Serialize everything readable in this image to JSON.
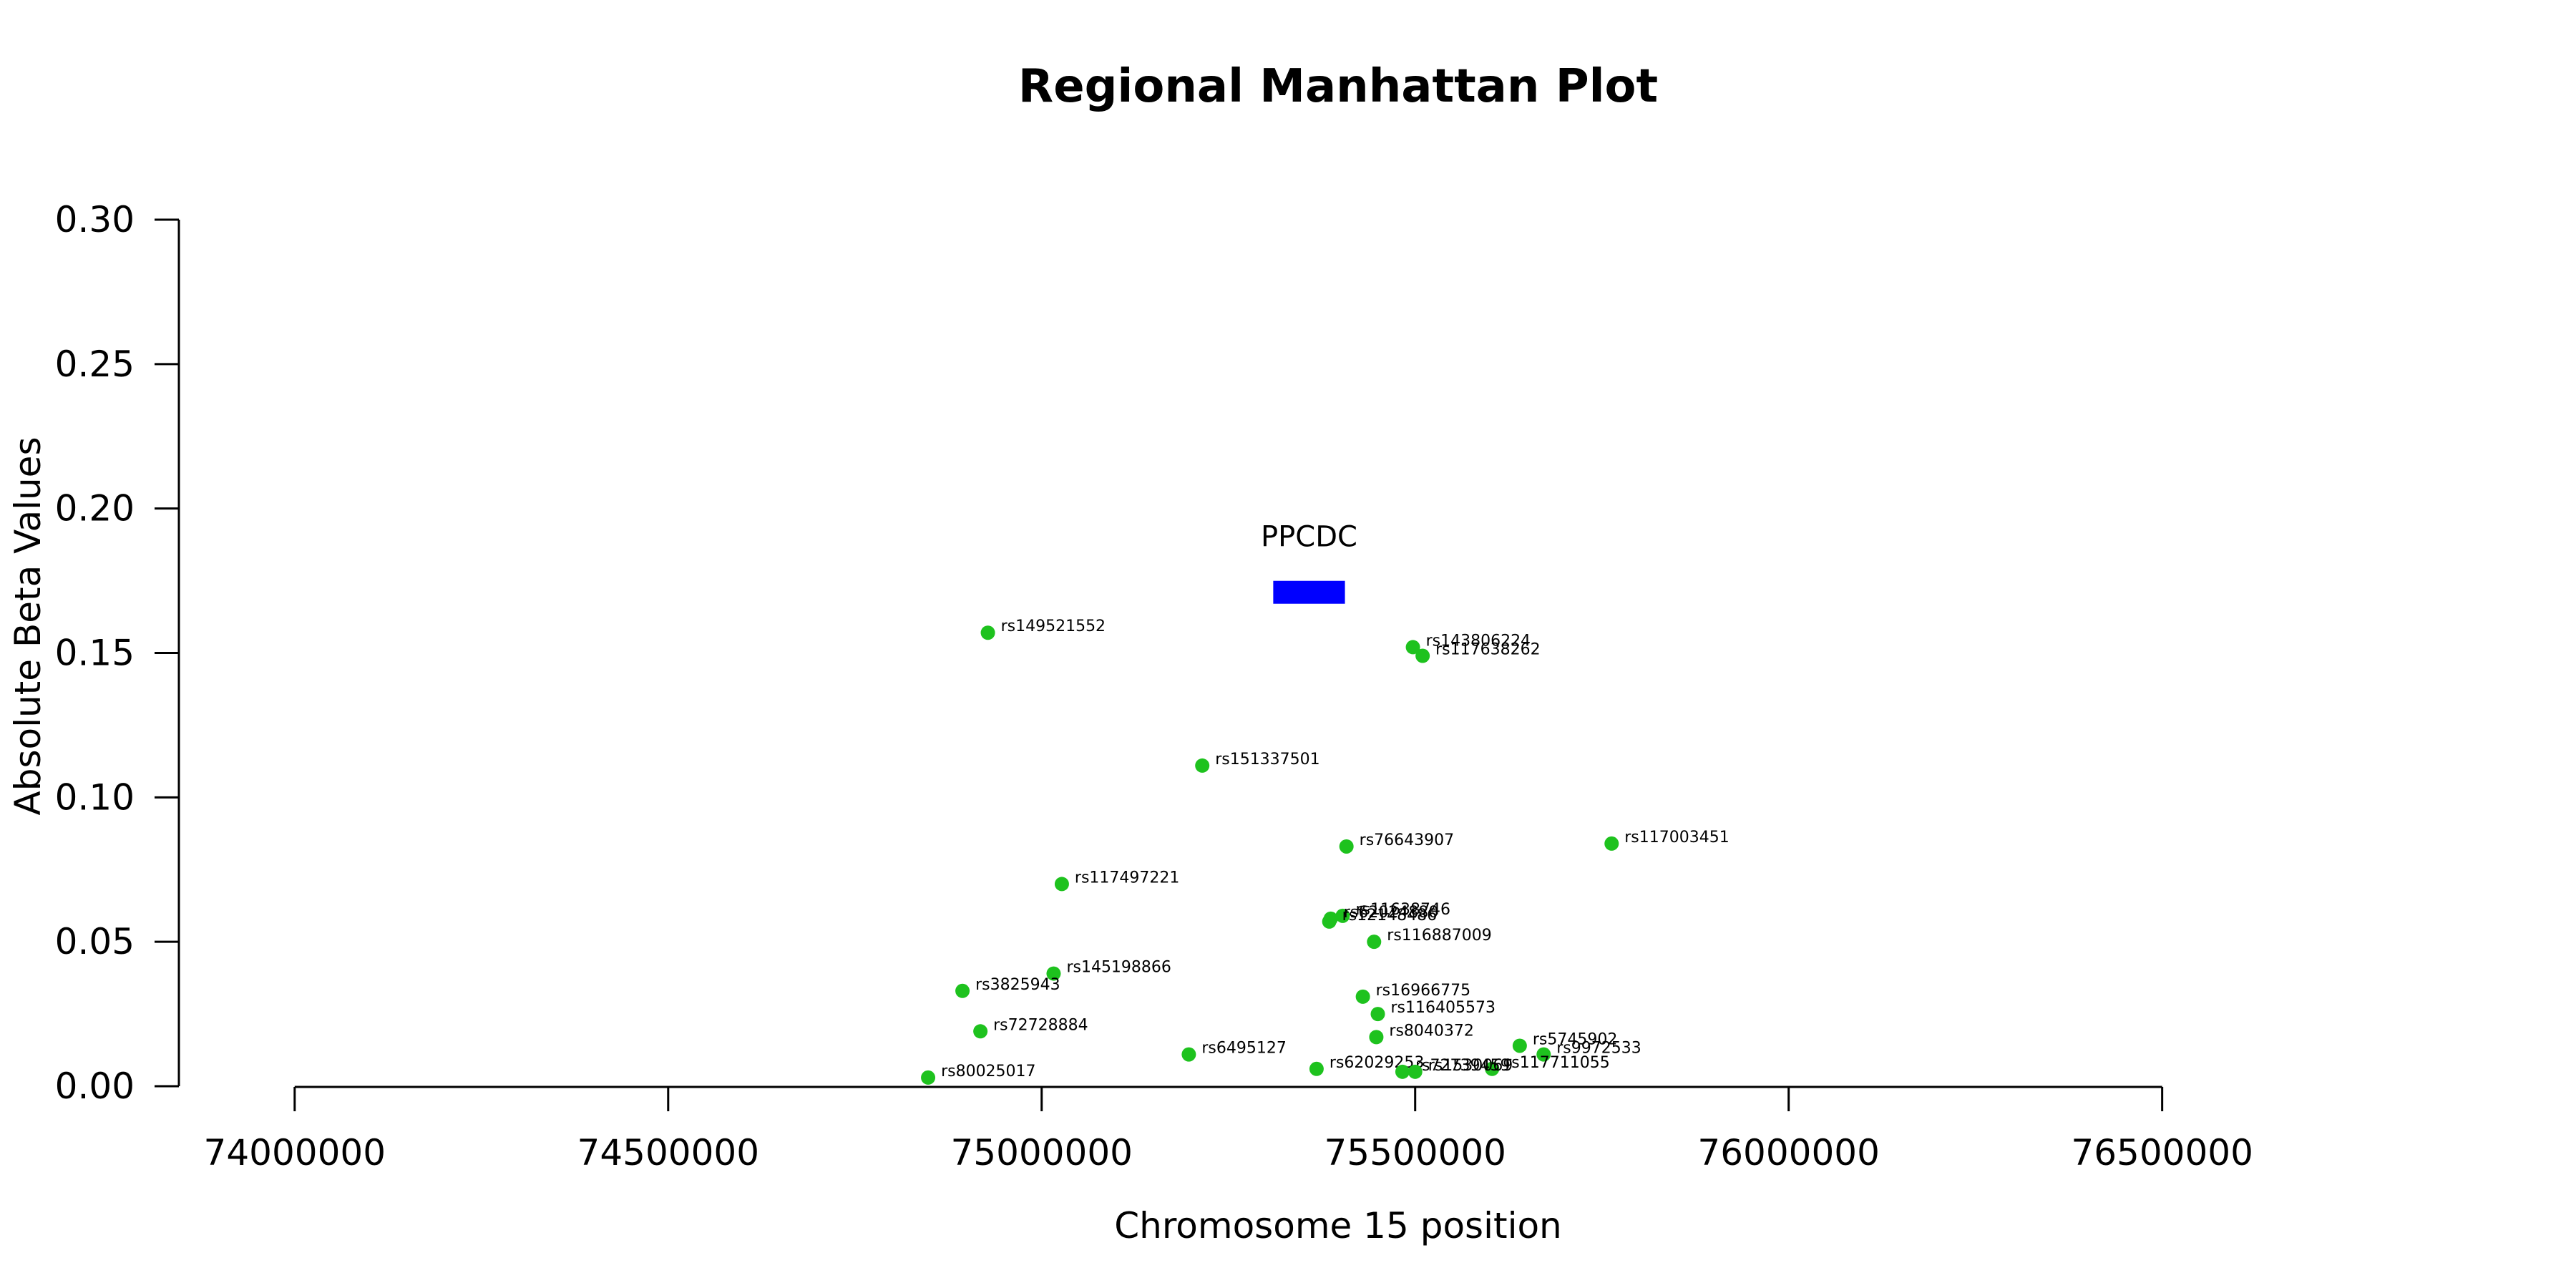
{
  "chart_data": {
    "type": "scatter",
    "title": "Regional Manhattan Plot",
    "xlabel": "Chromosome 15 position",
    "ylabel": "Absolute Beta Values",
    "xlim": [
      73845000,
      76690000
    ],
    "ylim": [
      0,
      0.3
    ],
    "x_ticks": [
      74000000,
      74500000,
      75000000,
      75500000,
      76000000,
      76500000
    ],
    "x_tick_labels": [
      "74000000",
      "74500000",
      "75000000",
      "75500000",
      "76000000",
      "76500000"
    ],
    "y_ticks": [
      0,
      0.05,
      0.1,
      0.15,
      0.2,
      0.25,
      0.3
    ],
    "y_tick_labels": [
      "0.00",
      "0.05",
      "0.10",
      "0.15",
      "0.20",
      "0.25",
      "0.30"
    ],
    "grid": false,
    "point_color": "#1ec21e",
    "points": [
      {
        "name": "rs149521552",
        "x": 74928000,
        "y": 0.157
      },
      {
        "name": "rs143806224",
        "x": 75497000,
        "y": 0.152
      },
      {
        "name": "rs117638262",
        "x": 75510000,
        "y": 0.149
      },
      {
        "name": "rs151337501",
        "x": 75215000,
        "y": 0.111
      },
      {
        "name": "rs76643907",
        "x": 75408000,
        "y": 0.083
      },
      {
        "name": "rs117003451",
        "x": 75763000,
        "y": 0.084
      },
      {
        "name": "rs117497221",
        "x": 75027000,
        "y": 0.07
      },
      {
        "name": "rs11638746",
        "x": 75403000,
        "y": 0.059
      },
      {
        "name": "rs62024880",
        "x": 75387000,
        "y": 0.058
      },
      {
        "name": "rs12148486",
        "x": 75385000,
        "y": 0.057
      },
      {
        "name": "rs116887009",
        "x": 75445000,
        "y": 0.05
      },
      {
        "name": "rs145198866",
        "x": 75016000,
        "y": 0.039
      },
      {
        "name": "rs3825943",
        "x": 74894000,
        "y": 0.033
      },
      {
        "name": "rs16966775",
        "x": 75430000,
        "y": 0.031
      },
      {
        "name": "rs116405573",
        "x": 75450000,
        "y": 0.025
      },
      {
        "name": "rs72728884",
        "x": 74918000,
        "y": 0.019
      },
      {
        "name": "rs8040372",
        "x": 75448000,
        "y": 0.017
      },
      {
        "name": "rs5745902",
        "x": 75640000,
        "y": 0.014
      },
      {
        "name": "rs9972533",
        "x": 75672000,
        "y": 0.011
      },
      {
        "name": "rs6495127",
        "x": 75197000,
        "y": 0.011
      },
      {
        "name": "rs117711055",
        "x": 75603000,
        "y": 0.006
      },
      {
        "name": "rs62029253",
        "x": 75368000,
        "y": 0.006
      },
      {
        "name": "rs72739459",
        "x": 75483000,
        "y": 0.005
      },
      {
        "name": "rs1530069",
        "x": 75500000,
        "y": 0.005
      },
      {
        "name": "rs80025017",
        "x": 74848000,
        "y": 0.003
      }
    ],
    "genes": [
      {
        "name": "PPCDC",
        "start": 75310000,
        "end": 75406000,
        "y": 0.171,
        "color": "#0000ff"
      }
    ]
  }
}
